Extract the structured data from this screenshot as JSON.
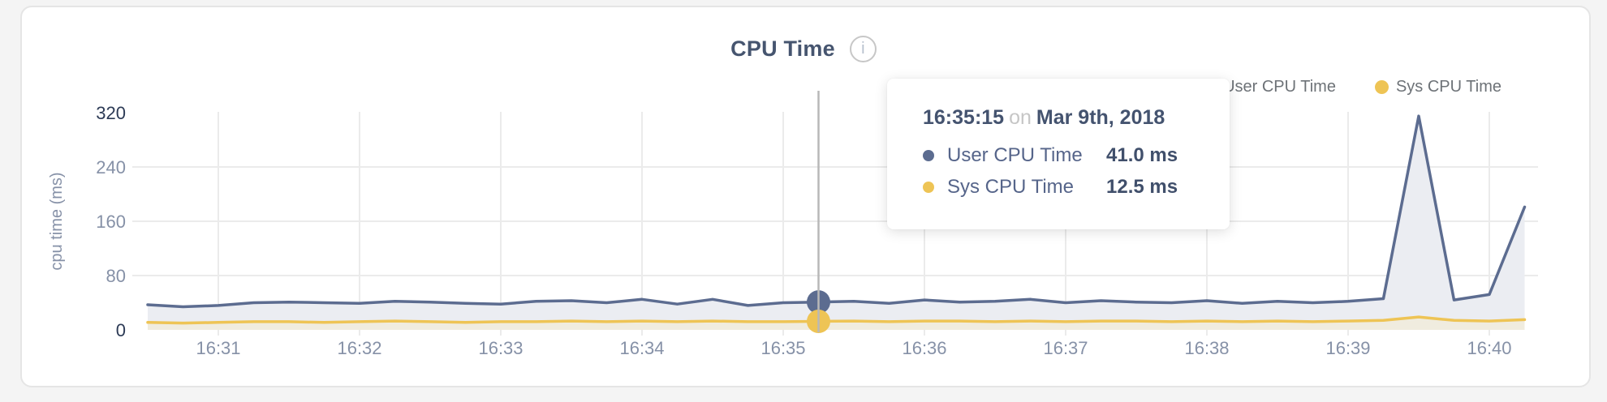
{
  "header": {
    "title": "CPU Time",
    "info_icon_glyph": "i"
  },
  "legend": {
    "items": [
      {
        "label": "User CPU Time",
        "color": "#5c6c90"
      },
      {
        "label": "Sys CPU Time",
        "color": "#eec455"
      }
    ]
  },
  "tooltip": {
    "time": "16:35:15",
    "connector": "on",
    "date": "Mar 9th, 2018",
    "rows": [
      {
        "label": "User CPU Time",
        "value": "41.0 ms",
        "color": "#5c6c90"
      },
      {
        "label": "Sys CPU Time",
        "value": "12.5 ms",
        "color": "#eec455"
      }
    ]
  },
  "colors": {
    "user_line": "#5c6c90",
    "sys_line": "#eec455",
    "user_area": "#ebedf2",
    "sys_area": "#f0ecdf",
    "grid": "#ebebeb",
    "crosshair": "#b8b8b8",
    "tick_muted": "#8691a7",
    "tick_strong": "#2c3a55"
  },
  "chart_data": {
    "type": "area",
    "title": "CPU Time",
    "xlabel": "",
    "ylabel": "cpu time (ms)",
    "ylim": [
      0,
      320
    ],
    "y_ticks": [
      0,
      80,
      160,
      240,
      320
    ],
    "x_ticks": [
      "16:31",
      "16:32",
      "16:33",
      "16:34",
      "16:35",
      "16:36",
      "16:37",
      "16:38",
      "16:39",
      "16:40"
    ],
    "grid": "on",
    "legend_position": "top-right",
    "x": [
      "16:30:30",
      "16:30:45",
      "16:31:00",
      "16:31:15",
      "16:31:30",
      "16:31:45",
      "16:32:00",
      "16:32:15",
      "16:32:30",
      "16:32:45",
      "16:33:00",
      "16:33:15",
      "16:33:30",
      "16:33:45",
      "16:34:00",
      "16:34:15",
      "16:34:30",
      "16:34:45",
      "16:35:00",
      "16:35:15",
      "16:35:30",
      "16:35:45",
      "16:36:00",
      "16:36:15",
      "16:36:30",
      "16:36:45",
      "16:37:00",
      "16:37:15",
      "16:37:30",
      "16:37:45",
      "16:38:00",
      "16:38:15",
      "16:38:30",
      "16:38:45",
      "16:39:00",
      "16:39:15",
      "16:39:30",
      "16:39:45",
      "16:40:00",
      "16:40:15"
    ],
    "series": [
      {
        "name": "User CPU Time",
        "unit": "ms",
        "values": [
          37,
          34,
          36,
          40,
          41,
          40,
          39,
          42,
          41,
          39,
          38,
          42,
          43,
          40,
          45,
          38,
          45,
          36,
          40,
          41,
          42,
          39,
          44,
          41,
          42,
          45,
          40,
          43,
          41,
          40,
          43,
          39,
          42,
          40,
          42,
          46,
          315,
          44,
          52,
          181
        ]
      },
      {
        "name": "Sys CPU Time",
        "unit": "ms",
        "values": [
          11,
          10,
          11,
          12,
          12,
          11,
          12,
          13,
          12,
          11,
          12,
          12,
          13,
          12,
          13,
          12,
          13,
          12,
          12,
          12.5,
          13,
          12,
          13,
          13,
          12,
          13,
          12,
          13,
          13,
          12,
          13,
          12,
          13,
          12,
          13,
          14,
          19,
          14,
          13,
          15
        ]
      }
    ],
    "highlight": {
      "x": "16:35:15",
      "index": 19,
      "user_value_ms": 41.0,
      "sys_value_ms": 12.5
    }
  }
}
